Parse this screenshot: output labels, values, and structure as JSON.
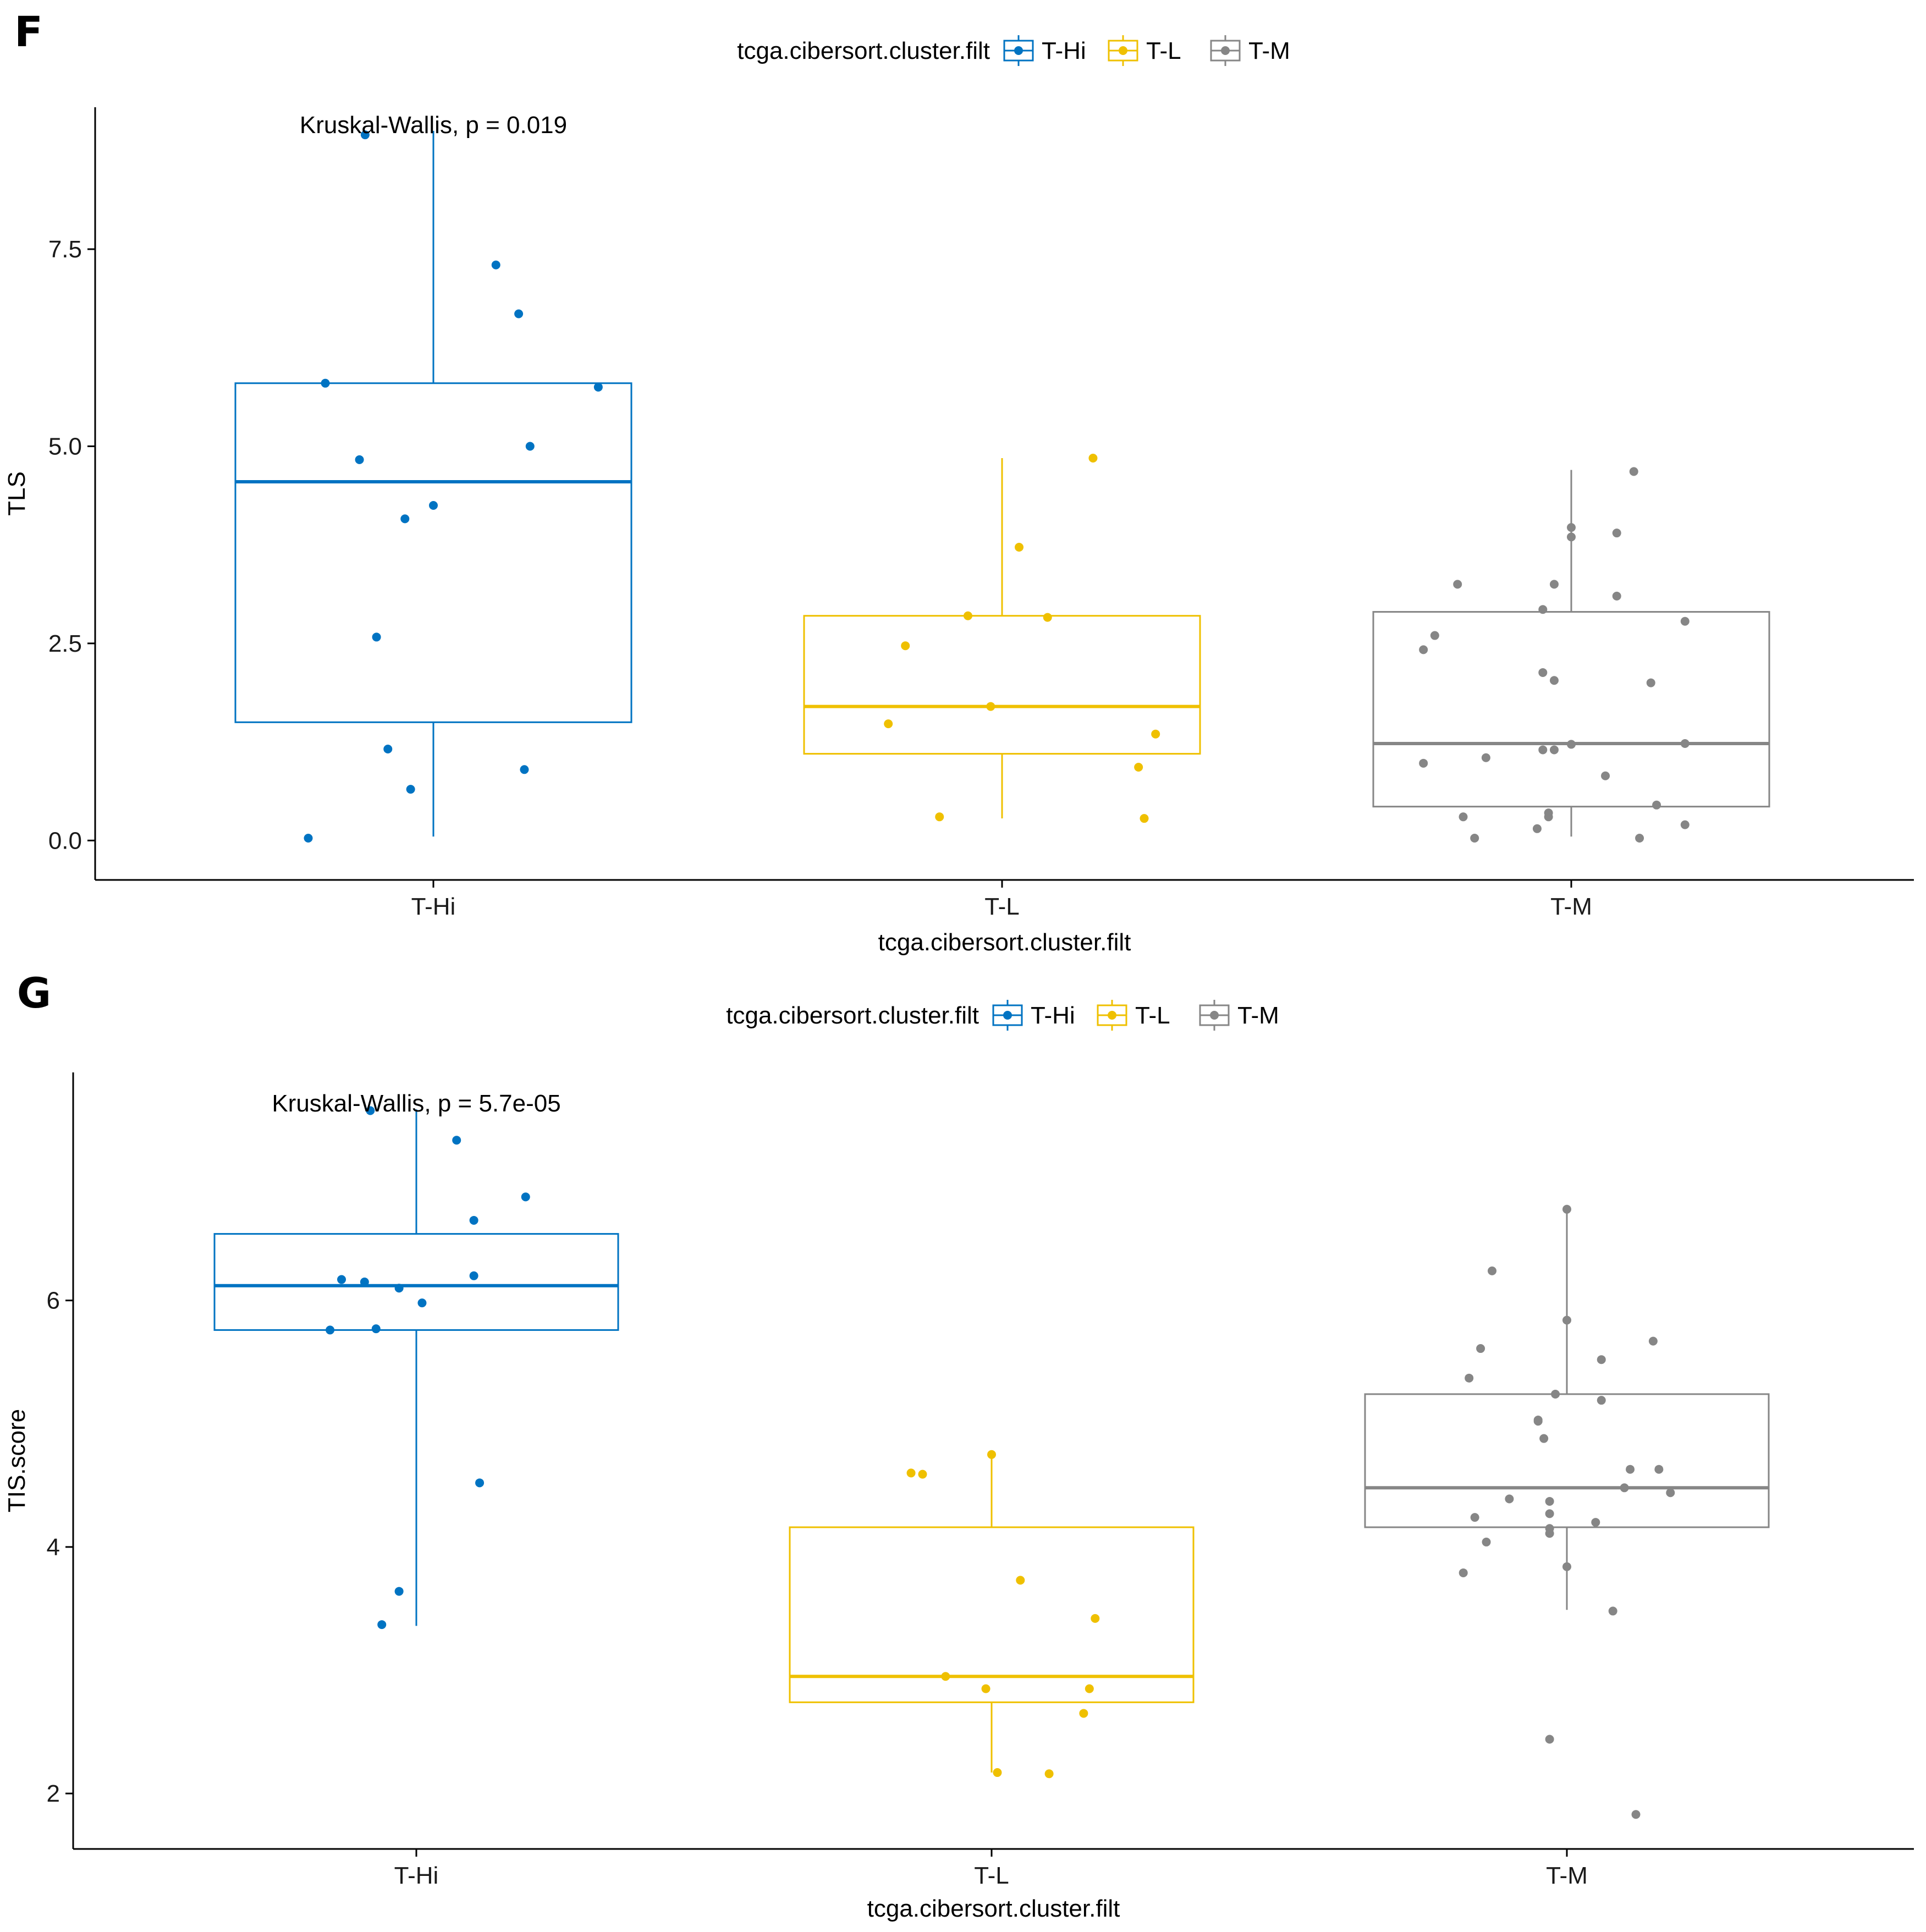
{
  "colors": {
    "T-Hi": "#0073C2",
    "T-L": "#EFC000",
    "T-M": "#868686"
  },
  "chart_data": [
    {
      "panel": "F",
      "type": "boxplot",
      "stat_label": "Kruskal-Wallis, p = 0.019",
      "xlabel": "tcga.cibersort.cluster.filt",
      "ylabel": "TLS",
      "ylim": [
        -0.5,
        9.3
      ],
      "yticks": [
        0.0,
        2.5,
        5.0,
        7.5
      ],
      "ytick_labels": [
        "0.0",
        "2.5",
        "5.0",
        "7.5"
      ],
      "legend": {
        "title": "tcga.cibersort.cluster.filt",
        "entries": [
          "T-Hi",
          "T-L",
          "T-M"
        ]
      },
      "categories": [
        "T-Hi",
        "T-L",
        "T-M"
      ],
      "boxes": [
        {
          "group": "T-Hi",
          "q1": 1.5,
          "median": 4.55,
          "q3": 5.8,
          "whisker_low": 0.05,
          "whisker_high": 9.0
        },
        {
          "group": "T-L",
          "q1": 1.1,
          "median": 1.7,
          "q3": 2.85,
          "whisker_low": 0.28,
          "whisker_high": 4.85
        },
        {
          "group": "T-M",
          "q1": 0.43,
          "median": 1.23,
          "q3": 2.9,
          "whisker_low": 0.05,
          "whisker_high": 4.7
        }
      ],
      "points": [
        {
          "group": "T-Hi",
          "jitter": -0.12,
          "y": 8.95
        },
        {
          "group": "T-Hi",
          "jitter": 0.11,
          "y": 7.3
        },
        {
          "group": "T-Hi",
          "jitter": 0.15,
          "y": 6.68
        },
        {
          "group": "T-Hi",
          "jitter": -0.19,
          "y": 5.8
        },
        {
          "group": "T-Hi",
          "jitter": 0.29,
          "y": 5.75
        },
        {
          "group": "T-Hi",
          "jitter": 0.17,
          "y": 5.0
        },
        {
          "group": "T-Hi",
          "jitter": -0.13,
          "y": 4.83
        },
        {
          "group": "T-Hi",
          "jitter": 0.0,
          "y": 4.25
        },
        {
          "group": "T-Hi",
          "jitter": -0.05,
          "y": 4.08
        },
        {
          "group": "T-Hi",
          "jitter": -0.1,
          "y": 2.58
        },
        {
          "group": "T-Hi",
          "jitter": -0.08,
          "y": 1.16
        },
        {
          "group": "T-Hi",
          "jitter": 0.16,
          "y": 0.9
        },
        {
          "group": "T-Hi",
          "jitter": -0.04,
          "y": 0.65
        },
        {
          "group": "T-Hi",
          "jitter": -0.22,
          "y": 0.03
        },
        {
          "group": "T-L",
          "jitter": 0.16,
          "y": 4.85
        },
        {
          "group": "T-L",
          "jitter": 0.03,
          "y": 3.72
        },
        {
          "group": "T-L",
          "jitter": -0.06,
          "y": 2.85
        },
        {
          "group": "T-L",
          "jitter": 0.08,
          "y": 2.83
        },
        {
          "group": "T-L",
          "jitter": -0.17,
          "y": 2.47
        },
        {
          "group": "T-L",
          "jitter": -0.02,
          "y": 1.7
        },
        {
          "group": "T-L",
          "jitter": -0.2,
          "y": 1.48
        },
        {
          "group": "T-L",
          "jitter": 0.27,
          "y": 1.35
        },
        {
          "group": "T-L",
          "jitter": 0.24,
          "y": 0.93
        },
        {
          "group": "T-L",
          "jitter": -0.11,
          "y": 0.3
        },
        {
          "group": "T-L",
          "jitter": 0.25,
          "y": 0.28
        },
        {
          "group": "T-M",
          "jitter": 0.11,
          "y": 4.68
        },
        {
          "group": "T-M",
          "jitter": 0.0,
          "y": 3.97
        },
        {
          "group": "T-M",
          "jitter": 0.08,
          "y": 3.9
        },
        {
          "group": "T-M",
          "jitter": 0.0,
          "y": 3.85
        },
        {
          "group": "T-M",
          "jitter": -0.2,
          "y": 3.25
        },
        {
          "group": "T-M",
          "jitter": -0.03,
          "y": 3.25
        },
        {
          "group": "T-M",
          "jitter": 0.08,
          "y": 3.1
        },
        {
          "group": "T-M",
          "jitter": -0.05,
          "y": 2.93
        },
        {
          "group": "T-M",
          "jitter": 0.2,
          "y": 2.78
        },
        {
          "group": "T-M",
          "jitter": -0.24,
          "y": 2.6
        },
        {
          "group": "T-M",
          "jitter": -0.26,
          "y": 2.42
        },
        {
          "group": "T-M",
          "jitter": -0.05,
          "y": 2.13
        },
        {
          "group": "T-M",
          "jitter": -0.03,
          "y": 2.03
        },
        {
          "group": "T-M",
          "jitter": 0.14,
          "y": 2.0
        },
        {
          "group": "T-M",
          "jitter": 0.2,
          "y": 1.23
        },
        {
          "group": "T-M",
          "jitter": 0.0,
          "y": 1.22
        },
        {
          "group": "T-M",
          "jitter": -0.05,
          "y": 1.15
        },
        {
          "group": "T-M",
          "jitter": -0.03,
          "y": 1.15
        },
        {
          "group": "T-M",
          "jitter": -0.15,
          "y": 1.05
        },
        {
          "group": "T-M",
          "jitter": -0.26,
          "y": 0.98
        },
        {
          "group": "T-M",
          "jitter": 0.06,
          "y": 0.82
        },
        {
          "group": "T-M",
          "jitter": 0.15,
          "y": 0.45
        },
        {
          "group": "T-M",
          "jitter": -0.04,
          "y": 0.35
        },
        {
          "group": "T-M",
          "jitter": -0.04,
          "y": 0.3
        },
        {
          "group": "T-M",
          "jitter": -0.19,
          "y": 0.3
        },
        {
          "group": "T-M",
          "jitter": 0.2,
          "y": 0.2
        },
        {
          "group": "T-M",
          "jitter": -0.06,
          "y": 0.15
        },
        {
          "group": "T-M",
          "jitter": -0.17,
          "y": 0.03
        },
        {
          "group": "T-M",
          "jitter": 0.12,
          "y": 0.03
        }
      ]
    },
    {
      "panel": "G",
      "type": "boxplot",
      "stat_label": "Kruskal-Wallis, p = 5.7e-05",
      "xlabel": "tcga.cibersort.cluster.filt",
      "ylabel": "TIS.score",
      "ylim": [
        1.55,
        7.85
      ],
      "yticks": [
        2,
        4,
        6
      ],
      "ytick_labels": [
        "2",
        "4",
        "6"
      ],
      "legend": {
        "title": "tcga.cibersort.cluster.filt",
        "entries": [
          "T-Hi",
          "T-L",
          "T-M"
        ]
      },
      "categories": [
        "T-Hi",
        "T-L",
        "T-M"
      ],
      "boxes": [
        {
          "group": "T-Hi",
          "q1": 5.76,
          "median": 6.12,
          "q3": 6.54,
          "whisker_low": 3.36,
          "whisker_high": 7.55
        },
        {
          "group": "T-L",
          "q1": 2.74,
          "median": 2.95,
          "q3": 4.16,
          "whisker_low": 2.17,
          "whisker_high": 4.75
        },
        {
          "group": "T-M",
          "q1": 4.16,
          "median": 4.48,
          "q3": 5.24,
          "whisker_low": 3.49,
          "whisker_high": 6.74
        }
      ],
      "points": [
        {
          "group": "T-Hi",
          "jitter": -0.08,
          "y": 7.54
        },
        {
          "group": "T-Hi",
          "jitter": 0.07,
          "y": 7.3
        },
        {
          "group": "T-Hi",
          "jitter": 0.19,
          "y": 6.84
        },
        {
          "group": "T-Hi",
          "jitter": 0.1,
          "y": 6.65
        },
        {
          "group": "T-Hi",
          "jitter": 0.1,
          "y": 6.2
        },
        {
          "group": "T-Hi",
          "jitter": -0.13,
          "y": 6.17
        },
        {
          "group": "T-Hi",
          "jitter": -0.09,
          "y": 6.15
        },
        {
          "group": "T-Hi",
          "jitter": -0.03,
          "y": 6.1
        },
        {
          "group": "T-Hi",
          "jitter": 0.01,
          "y": 5.98
        },
        {
          "group": "T-Hi",
          "jitter": -0.07,
          "y": 5.77
        },
        {
          "group": "T-Hi",
          "jitter": -0.15,
          "y": 5.76
        },
        {
          "group": "T-Hi",
          "jitter": 0.11,
          "y": 4.52
        },
        {
          "group": "T-Hi",
          "jitter": -0.03,
          "y": 3.64
        },
        {
          "group": "T-Hi",
          "jitter": -0.06,
          "y": 3.37
        },
        {
          "group": "T-L",
          "jitter": 0.0,
          "y": 4.75
        },
        {
          "group": "T-L",
          "jitter": -0.14,
          "y": 4.6
        },
        {
          "group": "T-L",
          "jitter": -0.12,
          "y": 4.59
        },
        {
          "group": "T-L",
          "jitter": 0.05,
          "y": 3.73
        },
        {
          "group": "T-L",
          "jitter": 0.18,
          "y": 3.42
        },
        {
          "group": "T-L",
          "jitter": -0.08,
          "y": 2.95
        },
        {
          "group": "T-L",
          "jitter": -0.01,
          "y": 2.85
        },
        {
          "group": "T-L",
          "jitter": 0.17,
          "y": 2.85
        },
        {
          "group": "T-L",
          "jitter": 0.16,
          "y": 2.65
        },
        {
          "group": "T-L",
          "jitter": 0.01,
          "y": 2.17
        },
        {
          "group": "T-L",
          "jitter": 0.1,
          "y": 2.16
        },
        {
          "group": "T-M",
          "jitter": 0.0,
          "y": 6.74
        },
        {
          "group": "T-M",
          "jitter": -0.13,
          "y": 6.24
        },
        {
          "group": "T-M",
          "jitter": 0.0,
          "y": 5.84
        },
        {
          "group": "T-M",
          "jitter": 0.15,
          "y": 5.67
        },
        {
          "group": "T-M",
          "jitter": -0.15,
          "y": 5.61
        },
        {
          "group": "T-M",
          "jitter": 0.06,
          "y": 5.52
        },
        {
          "group": "T-M",
          "jitter": -0.17,
          "y": 5.37
        },
        {
          "group": "T-M",
          "jitter": -0.02,
          "y": 5.24
        },
        {
          "group": "T-M",
          "jitter": 0.06,
          "y": 5.19
        },
        {
          "group": "T-M",
          "jitter": -0.05,
          "y": 5.03
        },
        {
          "group": "T-M",
          "jitter": -0.05,
          "y": 5.02
        },
        {
          "group": "T-M",
          "jitter": -0.04,
          "y": 4.88
        },
        {
          "group": "T-M",
          "jitter": 0.11,
          "y": 4.63
        },
        {
          "group": "T-M",
          "jitter": 0.16,
          "y": 4.63
        },
        {
          "group": "T-M",
          "jitter": 0.1,
          "y": 4.48
        },
        {
          "group": "T-M",
          "jitter": 0.18,
          "y": 4.44
        },
        {
          "group": "T-M",
          "jitter": -0.1,
          "y": 4.39
        },
        {
          "group": "T-M",
          "jitter": -0.03,
          "y": 4.37
        },
        {
          "group": "T-M",
          "jitter": -0.03,
          "y": 4.27
        },
        {
          "group": "T-M",
          "jitter": -0.16,
          "y": 4.24
        },
        {
          "group": "T-M",
          "jitter": 0.05,
          "y": 4.2
        },
        {
          "group": "T-M",
          "jitter": -0.03,
          "y": 4.15
        },
        {
          "group": "T-M",
          "jitter": -0.03,
          "y": 4.11
        },
        {
          "group": "T-M",
          "jitter": -0.14,
          "y": 4.04
        },
        {
          "group": "T-M",
          "jitter": 0.0,
          "y": 3.84
        },
        {
          "group": "T-M",
          "jitter": -0.18,
          "y": 3.79
        },
        {
          "group": "T-M",
          "jitter": 0.08,
          "y": 3.48
        },
        {
          "group": "T-M",
          "jitter": -0.03,
          "y": 2.44
        },
        {
          "group": "T-M",
          "jitter": 0.12,
          "y": 1.83
        }
      ]
    }
  ]
}
